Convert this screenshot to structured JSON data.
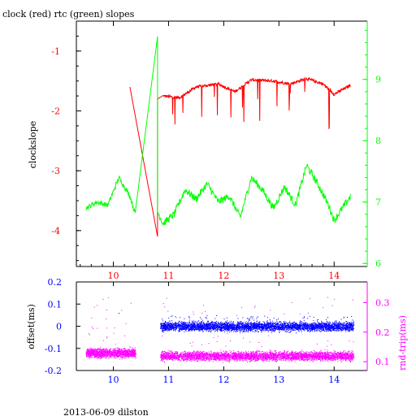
{
  "chart_data": [
    {
      "type": "line",
      "title": "clock (red) rtc (green) slopes",
      "ylabel_left": "clockslope",
      "x_ticks": [
        "10",
        "11",
        "12",
        "13",
        "14"
      ],
      "xlim": [
        9.33,
        14.6
      ],
      "ylim_left": [
        -4.6,
        -0.5
      ],
      "ylim_right": [
        5.95,
        9.95
      ],
      "left_ticks": [
        "-1",
        "-2",
        "-3",
        "-4"
      ],
      "right_ticks": [
        "9",
        "8",
        "7",
        "6"
      ],
      "colors": {
        "axes": "#000000",
        "clock": "#ff0000",
        "rtc": "#00ff00"
      },
      "series": [
        {
          "color": "#ff0000",
          "axis": "left",
          "x": [
            10.3,
            10.8,
            10.8,
            10.9,
            11.2,
            11.5,
            11.9,
            12.2,
            12.5,
            12.9,
            13.2,
            13.5,
            13.8,
            14.0,
            14.3
          ],
          "y": [
            -1.6,
            -4.1,
            -1.8,
            -1.75,
            -1.78,
            -1.6,
            -1.55,
            -1.68,
            -1.48,
            -1.5,
            -1.55,
            -1.46,
            -1.55,
            -1.72,
            -1.57
          ]
        },
        {
          "color": "#00ff00",
          "axis": "right",
          "x": [
            9.5,
            9.7,
            9.9,
            10.1,
            10.3,
            10.4,
            10.8,
            10.8,
            10.9,
            11.1,
            11.3,
            11.5,
            11.7,
            11.9,
            12.1,
            12.3,
            12.5,
            12.7,
            12.9,
            13.1,
            13.3,
            13.5,
            13.7,
            13.9,
            14.0,
            14.3
          ],
          "y": [
            6.9,
            7.0,
            6.95,
            7.4,
            7.1,
            6.8,
            9.7,
            6.85,
            6.65,
            6.8,
            7.2,
            7.05,
            7.3,
            7.0,
            7.1,
            6.75,
            7.4,
            7.2,
            6.9,
            7.25,
            6.95,
            7.6,
            7.3,
            6.95,
            6.7,
            7.1
          ]
        }
      ]
    },
    {
      "type": "scatter",
      "ylabel_left": "offset(ms)",
      "ylabel_right": "rnd-trip(ms)",
      "x_ticks": [
        "10",
        "11",
        "12",
        "13",
        "14"
      ],
      "xlim": [
        9.33,
        14.6
      ],
      "ylim_left": [
        -0.2,
        0.2
      ],
      "ylim_right": [
        0.07,
        0.37
      ],
      "left_ticks": [
        "0.2",
        "0.1",
        "0",
        "-0.1",
        "-0.2"
      ],
      "right_ticks": [
        "0.3",
        "0.2",
        "0.1"
      ],
      "colors": {
        "offset": "#0000ff",
        "rndtrip": "#ff00ff"
      },
      "series": [
        {
          "color": "#0000ff",
          "axis": "left",
          "x_range": [
            10.85,
            14.35
          ],
          "y_center": 0.0,
          "y_spread": 0.02,
          "outlier_max": 0.05
        },
        {
          "color": "#ff00ff",
          "axis": "right",
          "segments": [
            {
              "x_range": [
                9.5,
                10.4
              ],
              "y_center": 0.13,
              "y_spread": 0.015
            },
            {
              "x_range": [
                10.85,
                14.35
              ],
              "y_center": 0.12,
              "y_spread": 0.015
            }
          ],
          "outlier_max": 0.32
        }
      ]
    }
  ],
  "footer": "2013-06-09 dilston"
}
